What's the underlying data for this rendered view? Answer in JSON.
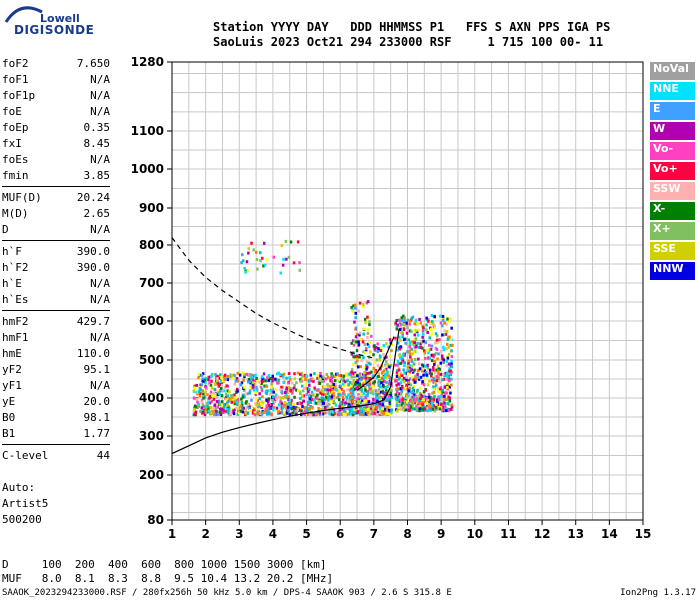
{
  "logo": {
    "line1": "Lowell",
    "line2": "DIGISONDE"
  },
  "header": {
    "line1": "Station YYYY DAY   DDD HHMMSS P1   FFS S AXN PPS IGA PS",
    "line2": "SaoLuis 2023 Oct21 294 233000 RSF     1 715 100 00- 11"
  },
  "params_groups": [
    [
      [
        "foF2",
        "7.650"
      ],
      [
        "foF1",
        "N/A"
      ],
      [
        "foF1p",
        "N/A"
      ],
      [
        "foE",
        "N/A"
      ],
      [
        "foEp",
        "0.35"
      ],
      [
        "fxI",
        "8.45"
      ],
      [
        "foEs",
        "N/A"
      ],
      [
        "fmin",
        "3.85"
      ]
    ],
    [
      [
        "MUF(D)",
        "20.24"
      ],
      [
        "M(D)",
        "2.65"
      ],
      [
        "D",
        "N/A"
      ]
    ],
    [
      [
        "h`F",
        "390.0"
      ],
      [
        "h`F2",
        "390.0"
      ],
      [
        "h`E",
        "N/A"
      ],
      [
        "h`Es",
        "N/A"
      ]
    ],
    [
      [
        "hmF2",
        "429.7"
      ],
      [
        "hmF1",
        "N/A"
      ],
      [
        "hmE",
        "110.0"
      ],
      [
        "yF2",
        "95.1"
      ],
      [
        "yF1",
        "N/A"
      ],
      [
        "yE",
        "20.0"
      ],
      [
        "B0",
        "98.1"
      ],
      [
        "B1",
        "1.77"
      ]
    ],
    [
      [
        "C-level",
        "44"
      ]
    ]
  ],
  "auto": {
    "line1": "Auto:",
    "line2": "Artist5",
    "line3": "500200"
  },
  "legend": [
    {
      "label": "NoVal",
      "color": "#a0a0a0"
    },
    {
      "label": "NNE",
      "color": "#00e0ff"
    },
    {
      "label": "E",
      "color": "#40a0ff"
    },
    {
      "label": "W",
      "color": "#b000b0"
    },
    {
      "label": "Vo-",
      "color": "#ff40c0"
    },
    {
      "label": "Vo+",
      "color": "#ff0040"
    },
    {
      "label": "SSW",
      "color": "#ffb0b0"
    },
    {
      "label": "X-",
      "color": "#008000"
    },
    {
      "label": "X+",
      "color": "#80c060"
    },
    {
      "label": "SSE",
      "color": "#d0d000"
    },
    {
      "label": "NNW",
      "color": "#0000e0"
    }
  ],
  "muf_table": {
    "d_line": "D     100  200  400  600  800 1000 1500 3000 [km]",
    "muf_line": "MUF   8.0  8.1  8.3  8.8  9.5 10.4 13.2 20.2 [MHz]"
  },
  "footer": {
    "left": "SAAOK_2023294233000.RSF / 280fx256h 50 kHz 5.0 km / DPS-4 SAAOK 903 / 2.6 S 315.8 E",
    "right": "Ion2Png 1.3.17"
  },
  "chart_data": {
    "type": "scatter",
    "xlim": [
      1,
      15
    ],
    "ylim": [
      80,
      1280
    ],
    "x_ticks": [
      1,
      2,
      3,
      4,
      5,
      6,
      7,
      8,
      9,
      10,
      11,
      12,
      13,
      14,
      15
    ],
    "y_ticks": [
      80,
      200,
      300,
      400,
      500,
      600,
      700,
      800,
      900,
      1000,
      1100,
      1280
    ],
    "grid": true,
    "dashed_curve": [
      [
        1.0,
        820
      ],
      [
        1.5,
        760
      ],
      [
        2.0,
        715
      ],
      [
        2.5,
        680
      ],
      [
        3.0,
        650
      ],
      [
        3.5,
        620
      ],
      [
        4.0,
        595
      ],
      [
        4.5,
        575
      ],
      [
        5.0,
        555
      ],
      [
        5.5,
        540
      ],
      [
        6.0,
        528
      ],
      [
        6.5,
        515
      ],
      [
        7.0,
        505
      ]
    ],
    "solid_curve_o": [
      [
        1.0,
        255
      ],
      [
        1.5,
        275
      ],
      [
        2.0,
        295
      ],
      [
        2.5,
        310
      ],
      [
        3.0,
        322
      ],
      [
        3.5,
        333
      ],
      [
        4.0,
        343
      ],
      [
        4.5,
        352
      ],
      [
        5.0,
        360
      ],
      [
        5.5,
        367
      ],
      [
        6.0,
        373
      ],
      [
        6.5,
        378
      ],
      [
        7.0,
        385
      ],
      [
        7.3,
        395
      ],
      [
        7.5,
        430
      ],
      [
        7.65,
        520
      ],
      [
        7.75,
        580
      ]
    ],
    "solid_curve_x": [
      [
        6.5,
        420
      ],
      [
        6.8,
        440
      ],
      [
        7.0,
        455
      ],
      [
        7.2,
        480
      ],
      [
        7.4,
        520
      ],
      [
        7.6,
        560
      ]
    ],
    "echo_clusters": [
      {
        "x": [
          1.6,
          7.5
        ],
        "y": [
          360,
          470
        ],
        "density": 1300
      },
      {
        "x": [
          6.3,
          7.5
        ],
        "y": [
          360,
          560
        ],
        "density": 300
      },
      {
        "x": [
          7.6,
          9.3
        ],
        "y": [
          370,
          620
        ],
        "density": 650
      },
      {
        "x": [
          7.8,
          9.0
        ],
        "y": [
          375,
          410
        ],
        "density": 120
      },
      {
        "x": [
          2.9,
          4.8
        ],
        "y": [
          730,
          820
        ],
        "density": 35
      },
      {
        "x": [
          6.3,
          6.9
        ],
        "y": [
          550,
          660
        ],
        "density": 40
      }
    ]
  }
}
